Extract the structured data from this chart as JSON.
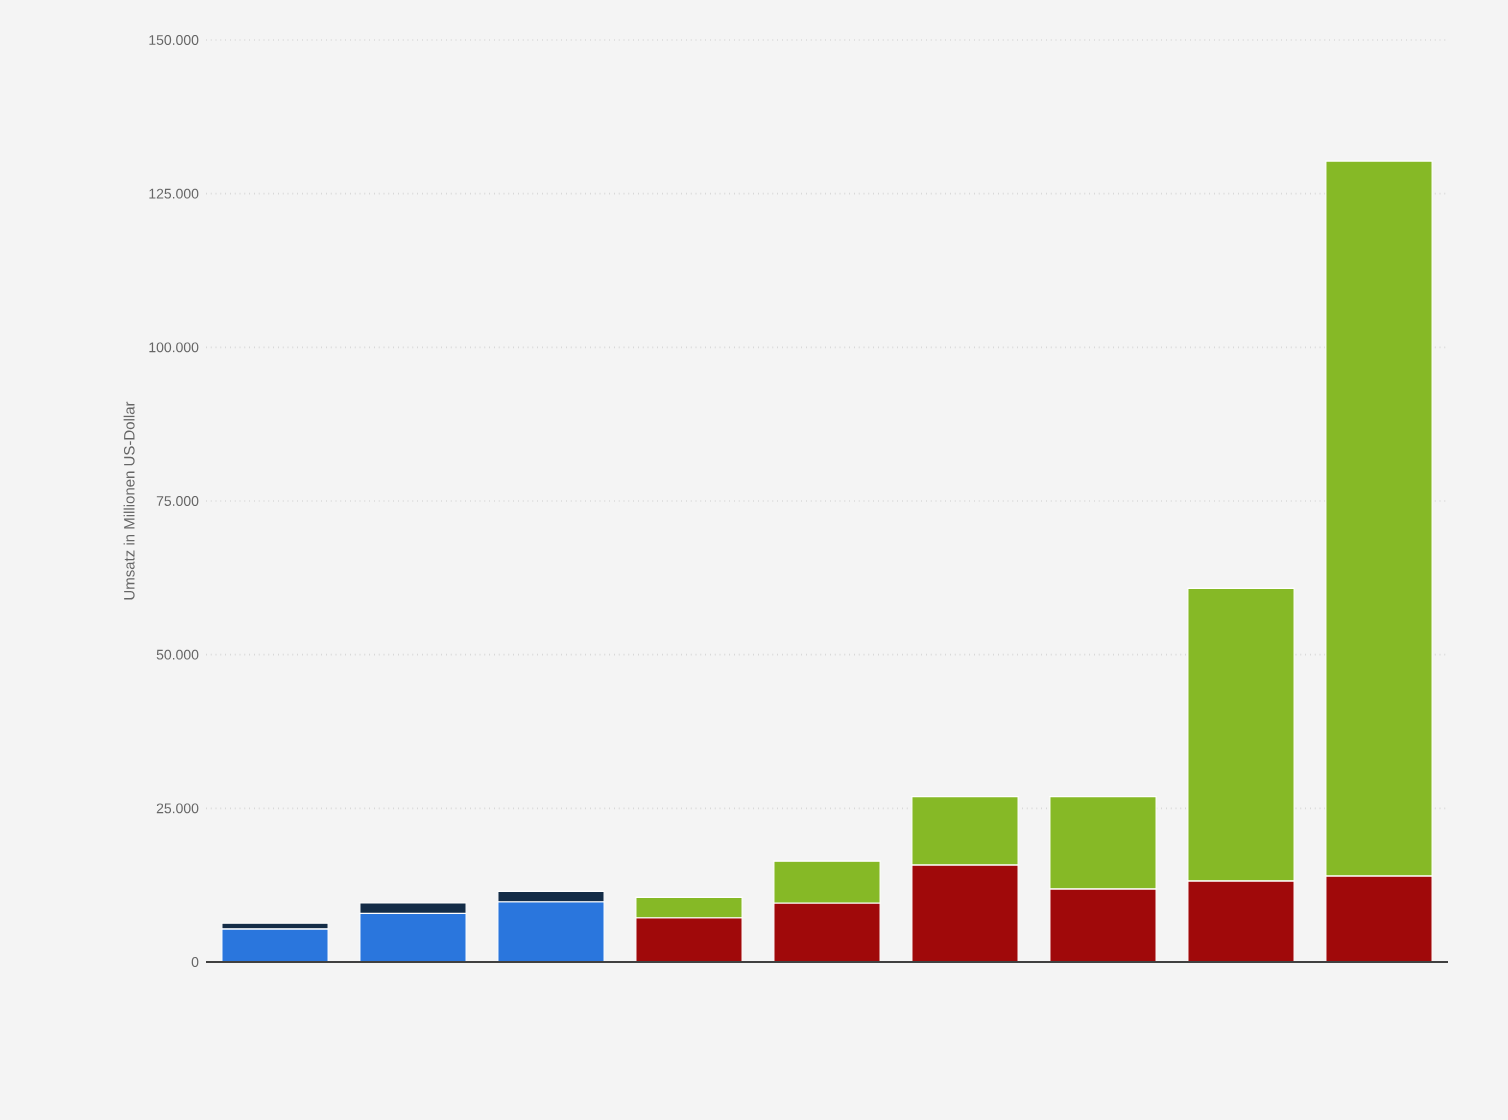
{
  "chart_data": {
    "type": "bar",
    "ylabel": "Umsatz in Millionen US-Dollar",
    "categories": [
      null,
      null,
      null,
      null,
      null,
      null,
      null,
      null,
      null
    ],
    "series": [
      {
        "color": "#2a76dd",
        "values": [
          5400.0,
          7900.0,
          9800.0,
          null,
          null,
          null,
          null,
          null,
          null
        ]
      },
      {
        "color": "#142c47",
        "values": [
          900,
          1700,
          1700,
          null,
          null,
          null,
          null,
          null,
          null
        ]
      },
      {
        "color": "#a0090a",
        "values": [
          null,
          null,
          null,
          7200,
          9600,
          15800,
          11900,
          13200,
          14000
        ]
      },
      {
        "color": "#86b926",
        "values": [
          null,
          null,
          null,
          3300,
          6800,
          11100,
          15000,
          47600,
          116300
        ]
      }
    ],
    "stacked": true,
    "ylim": [
      0,
      150000
    ],
    "yticks": [
      {
        "value": 0,
        "label": "0"
      },
      {
        "value": 25000,
        "label": "25.000"
      },
      {
        "value": 50000,
        "label": "50.000"
      },
      {
        "value": 75000,
        "label": "75.000"
      },
      {
        "value": 100000,
        "label": "100.000"
      },
      {
        "value": 125000,
        "label": "125.000"
      },
      {
        "value": 150000,
        "label": "150.000"
      }
    ],
    "grid": "y",
    "tick_labels": "y"
  }
}
